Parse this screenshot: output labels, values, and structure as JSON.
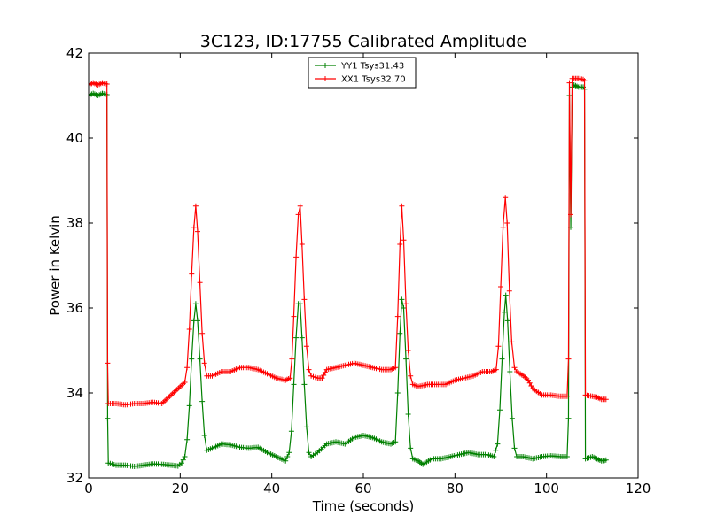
{
  "chart_data": {
    "type": "line",
    "title": "3C123, ID:17755 Calibrated Amplitude",
    "xlabel": "Time (seconds)",
    "ylabel": "Power in Kelvin",
    "xlim": [
      0,
      120
    ],
    "ylim": [
      32,
      42
    ],
    "xticks": [
      "0",
      "20",
      "40",
      "60",
      "80",
      "100",
      "120"
    ],
    "yticks": [
      "32",
      "34",
      "36",
      "38",
      "40",
      "42"
    ],
    "grid": false,
    "legend_position": "top-center",
    "series": [
      {
        "name": "YY1 Tsys31.43",
        "color": "#008000",
        "marker": "+",
        "points": [
          [
            0.0,
            41.0
          ],
          [
            1.0,
            41.05
          ],
          [
            2.0,
            41.0
          ],
          [
            3.0,
            41.05
          ],
          [
            4.0,
            41.02
          ],
          [
            4.15,
            33.4
          ],
          [
            4.3,
            32.35
          ],
          [
            6,
            32.3
          ],
          [
            8,
            32.3
          ],
          [
            10,
            32.27
          ],
          [
            12,
            32.3
          ],
          [
            14,
            32.33
          ],
          [
            16,
            32.32
          ],
          [
            18,
            32.3
          ],
          [
            19.5,
            32.28
          ],
          [
            20.3,
            32.35
          ],
          [
            21.0,
            32.5
          ],
          [
            21.5,
            32.9
          ],
          [
            22.0,
            33.7
          ],
          [
            22.5,
            34.8
          ],
          [
            23.0,
            35.7
          ],
          [
            23.4,
            36.1
          ],
          [
            23.8,
            35.7
          ],
          [
            24.3,
            34.8
          ],
          [
            24.8,
            33.8
          ],
          [
            25.3,
            33.0
          ],
          [
            25.8,
            32.65
          ],
          [
            27,
            32.7
          ],
          [
            29,
            32.8
          ],
          [
            31,
            32.78
          ],
          [
            33,
            32.72
          ],
          [
            35,
            32.7
          ],
          [
            37,
            32.72
          ],
          [
            39,
            32.6
          ],
          [
            41,
            32.5
          ],
          [
            43,
            32.4
          ],
          [
            43.8,
            32.6
          ],
          [
            44.3,
            33.1
          ],
          [
            44.8,
            34.2
          ],
          [
            45.3,
            35.3
          ],
          [
            45.8,
            36.1
          ],
          [
            46.2,
            36.1
          ],
          [
            46.6,
            35.3
          ],
          [
            47.1,
            34.2
          ],
          [
            47.6,
            33.2
          ],
          [
            48.1,
            32.6
          ],
          [
            48.6,
            32.5
          ],
          [
            50,
            32.6
          ],
          [
            52,
            32.8
          ],
          [
            54,
            32.85
          ],
          [
            56,
            32.8
          ],
          [
            58,
            32.95
          ],
          [
            60,
            33.0
          ],
          [
            62,
            32.95
          ],
          [
            64,
            32.85
          ],
          [
            66,
            32.8
          ],
          [
            67.0,
            32.85
          ],
          [
            67.5,
            34.0
          ],
          [
            68.0,
            35.4
          ],
          [
            68.4,
            36.2
          ],
          [
            68.8,
            36.0
          ],
          [
            69.3,
            34.8
          ],
          [
            69.8,
            33.5
          ],
          [
            70.3,
            32.7
          ],
          [
            70.8,
            32.45
          ],
          [
            72,
            32.4
          ],
          [
            73,
            32.32
          ],
          [
            75,
            32.45
          ],
          [
            77,
            32.45
          ],
          [
            79,
            32.5
          ],
          [
            81,
            32.55
          ],
          [
            83,
            32.6
          ],
          [
            85,
            32.55
          ],
          [
            87,
            32.55
          ],
          [
            88.5,
            32.5
          ],
          [
            89.3,
            32.8
          ],
          [
            89.8,
            33.6
          ],
          [
            90.3,
            34.8
          ],
          [
            90.8,
            35.9
          ],
          [
            91.1,
            36.3
          ],
          [
            91.5,
            35.7
          ],
          [
            92.0,
            34.5
          ],
          [
            92.5,
            33.4
          ],
          [
            93.0,
            32.7
          ],
          [
            93.5,
            32.5
          ],
          [
            95,
            32.5
          ],
          [
            97,
            32.45
          ],
          [
            99,
            32.5
          ],
          [
            101,
            32.52
          ],
          [
            103,
            32.5
          ],
          [
            104.5,
            32.5
          ],
          [
            104.8,
            33.4
          ],
          [
            105.0,
            41.0
          ],
          [
            105.3,
            37.9
          ],
          [
            105.6,
            41.2
          ],
          [
            106,
            41.25
          ],
          [
            107,
            41.2
          ],
          [
            108,
            41.2
          ],
          [
            108.3,
            41.15
          ],
          [
            108.5,
            32.45
          ],
          [
            110,
            32.5
          ],
          [
            111,
            32.45
          ],
          [
            112,
            32.4
          ],
          [
            113,
            32.42
          ]
        ]
      },
      {
        "name": "XX1 Tsys32.70",
        "color": "#ff0000",
        "marker": "+",
        "points": [
          [
            0.0,
            41.25
          ],
          [
            1.0,
            41.3
          ],
          [
            2.0,
            41.25
          ],
          [
            3.0,
            41.3
          ],
          [
            4.0,
            41.27
          ],
          [
            4.15,
            34.7
          ],
          [
            4.3,
            33.75
          ],
          [
            6,
            33.75
          ],
          [
            8,
            33.72
          ],
          [
            10,
            33.75
          ],
          [
            12,
            33.75
          ],
          [
            14,
            33.78
          ],
          [
            16,
            33.75
          ],
          [
            17,
            33.85
          ],
          [
            18,
            33.95
          ],
          [
            19,
            34.05
          ],
          [
            20,
            34.15
          ],
          [
            21,
            34.25
          ],
          [
            21.5,
            34.6
          ],
          [
            22.0,
            35.5
          ],
          [
            22.5,
            36.8
          ],
          [
            23.0,
            37.9
          ],
          [
            23.4,
            38.4
          ],
          [
            23.8,
            37.8
          ],
          [
            24.3,
            36.6
          ],
          [
            24.8,
            35.4
          ],
          [
            25.3,
            34.7
          ],
          [
            25.8,
            34.4
          ],
          [
            27,
            34.4
          ],
          [
            29,
            34.5
          ],
          [
            31,
            34.5
          ],
          [
            33,
            34.6
          ],
          [
            35,
            34.6
          ],
          [
            37,
            34.55
          ],
          [
            39,
            34.45
          ],
          [
            41,
            34.35
          ],
          [
            43,
            34.3
          ],
          [
            44,
            34.35
          ],
          [
            44.4,
            34.8
          ],
          [
            44.8,
            35.8
          ],
          [
            45.3,
            37.2
          ],
          [
            45.8,
            38.2
          ],
          [
            46.2,
            38.4
          ],
          [
            46.6,
            37.5
          ],
          [
            47.1,
            36.2
          ],
          [
            47.6,
            35.1
          ],
          [
            48.1,
            34.55
          ],
          [
            48.6,
            34.4
          ],
          [
            50,
            34.35
          ],
          [
            51,
            34.35
          ],
          [
            52,
            34.55
          ],
          [
            54,
            34.6
          ],
          [
            56,
            34.65
          ],
          [
            58,
            34.7
          ],
          [
            60,
            34.65
          ],
          [
            62,
            34.6
          ],
          [
            64,
            34.55
          ],
          [
            66,
            34.55
          ],
          [
            67.0,
            34.6
          ],
          [
            67.5,
            35.8
          ],
          [
            68.0,
            37.5
          ],
          [
            68.4,
            38.4
          ],
          [
            68.8,
            37.6
          ],
          [
            69.3,
            36.1
          ],
          [
            69.8,
            35.0
          ],
          [
            70.3,
            34.4
          ],
          [
            70.8,
            34.2
          ],
          [
            72,
            34.15
          ],
          [
            74,
            34.2
          ],
          [
            76,
            34.2
          ],
          [
            78,
            34.2
          ],
          [
            80,
            34.3
          ],
          [
            82,
            34.35
          ],
          [
            84,
            34.4
          ],
          [
            86,
            34.5
          ],
          [
            88,
            34.5
          ],
          [
            89.0,
            34.55
          ],
          [
            89.5,
            35.1
          ],
          [
            90.0,
            36.5
          ],
          [
            90.5,
            37.9
          ],
          [
            91.0,
            38.6
          ],
          [
            91.4,
            38.0
          ],
          [
            91.9,
            36.4
          ],
          [
            92.4,
            35.2
          ],
          [
            93.0,
            34.6
          ],
          [
            93.5,
            34.5
          ],
          [
            95,
            34.4
          ],
          [
            96,
            34.3
          ],
          [
            97,
            34.1
          ],
          [
            99,
            33.95
          ],
          [
            101,
            33.95
          ],
          [
            103,
            33.92
          ],
          [
            104.5,
            33.92
          ],
          [
            104.8,
            34.8
          ],
          [
            105.0,
            41.3
          ],
          [
            105.3,
            38.2
          ],
          [
            105.6,
            41.4
          ],
          [
            106,
            41.4
          ],
          [
            107,
            41.4
          ],
          [
            108,
            41.38
          ],
          [
            108.3,
            41.35
          ],
          [
            108.5,
            33.95
          ],
          [
            110,
            33.92
          ],
          [
            111,
            33.9
          ],
          [
            112,
            33.85
          ],
          [
            113,
            33.85
          ]
        ]
      }
    ]
  }
}
